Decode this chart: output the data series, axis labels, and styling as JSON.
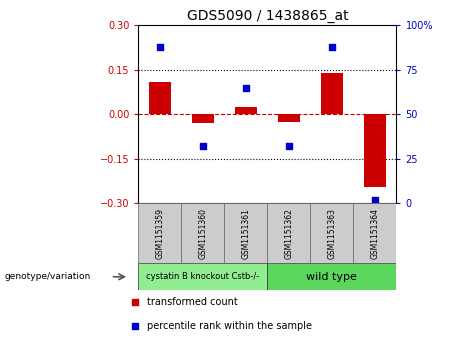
{
  "title": "GDS5090 / 1438865_at",
  "samples": [
    "GSM1151359",
    "GSM1151360",
    "GSM1151361",
    "GSM1151362",
    "GSM1151363",
    "GSM1151364"
  ],
  "transformed_count": [
    0.11,
    -0.03,
    0.025,
    -0.025,
    0.14,
    -0.245
  ],
  "percentile_rank": [
    88,
    32,
    65,
    32,
    88,
    2
  ],
  "ylim_left": [
    -0.3,
    0.3
  ],
  "ylim_right": [
    0,
    100
  ],
  "yticks_left": [
    -0.3,
    -0.15,
    0,
    0.15,
    0.3
  ],
  "yticks_right": [
    0,
    25,
    50,
    75,
    100
  ],
  "ytick_labels_right": [
    "0",
    "25",
    "50",
    "75",
    "100%"
  ],
  "bar_color": "#cc0000",
  "scatter_color": "#0000cc",
  "zero_line_color": "#cc0000",
  "hline_color": "black",
  "hlines": [
    0.15,
    -0.15
  ],
  "group_labels": [
    "cystatin B knockout Cstb-/-",
    "wild type"
  ],
  "group_ranges": [
    [
      0,
      3
    ],
    [
      3,
      6
    ]
  ],
  "group_colors": [
    "#90ee90",
    "#5cd65c"
  ],
  "sample_box_color": "#cccccc",
  "genotype_label": "genotype/variation",
  "legend_items": [
    "transformed count",
    "percentile rank within the sample"
  ],
  "legend_colors": [
    "#cc0000",
    "#0000cc"
  ],
  "bar_width": 0.5,
  "scatter_marker": "s",
  "scatter_size": 25,
  "title_fontsize": 10,
  "tick_fontsize": 7,
  "label_fontsize": 7
}
